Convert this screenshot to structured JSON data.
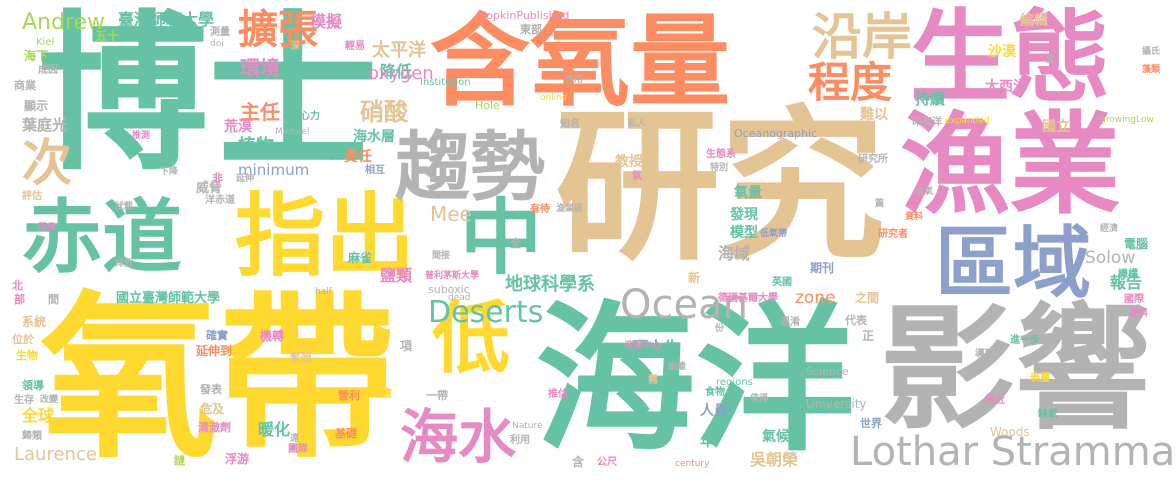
{
  "palette": {
    "teal": "#66c2a5",
    "orange": "#fc8d62",
    "blue": "#8da0cb",
    "pink": "#e78ac3",
    "green": "#a6d854",
    "yellow": "#ffd92f",
    "tan": "#e5c494",
    "gray": "#b3b3b3"
  },
  "words": [
    {
      "text": "博士",
      "color": "teal"
    },
    {
      "text": "研究",
      "color": "tan"
    },
    {
      "text": "氧帶",
      "color": "yellow"
    },
    {
      "text": "海洋",
      "color": "teal"
    },
    {
      "text": "含氧量",
      "color": "orange"
    },
    {
      "text": "影響",
      "color": "gray"
    },
    {
      "text": "漁業",
      "color": "pink"
    },
    {
      "text": "生態",
      "color": "pink"
    },
    {
      "text": "指出",
      "color": "yellow"
    },
    {
      "text": "赤道",
      "color": "teal"
    },
    {
      "text": "趨勢",
      "color": "gray"
    },
    {
      "text": "區域",
      "color": "blue"
    },
    {
      "text": "中",
      "color": "teal"
    },
    {
      "text": "低",
      "color": "yellow"
    },
    {
      "text": "海水",
      "color": "pink"
    },
    {
      "text": "沿岸",
      "color": "tan"
    },
    {
      "text": "程度",
      "color": "orange"
    },
    {
      "text": "Lothar Stramma",
      "color": "gray"
    },
    {
      "text": "Ocean",
      "color": "gray"
    },
    {
      "text": "Deserts",
      "color": "teal"
    },
    {
      "text": "擴張",
      "color": "orange"
    },
    {
      "text": "次",
      "color": "tan"
    },
    {
      "text": "Andrew",
      "color": "green"
    },
    {
      "text": "臺灣師範大學",
      "color": "teal"
    },
    {
      "text": "模擬",
      "color": "pink"
    },
    {
      "text": "HopkinPublished",
      "color": "pink"
    },
    {
      "text": "東部",
      "color": "gray"
    },
    {
      "text": "太平洋",
      "color": "tan"
    },
    {
      "text": "降低",
      "color": "teal"
    },
    {
      "text": "oxygen",
      "color": "pink"
    },
    {
      "text": "環境",
      "color": "pink"
    },
    {
      "text": "主任",
      "color": "orange"
    },
    {
      "text": "植物",
      "color": "teal"
    },
    {
      "text": "硝酸",
      "color": "tan"
    },
    {
      "text": "minimum",
      "color": "blue"
    },
    {
      "text": "海水層",
      "color": "teal"
    },
    {
      "text": "責任",
      "color": "orange"
    },
    {
      "text": "荒漠",
      "color": "pink"
    },
    {
      "text": "地球科學系",
      "color": "teal"
    },
    {
      "text": "鹽類",
      "color": "pink"
    },
    {
      "text": "國立臺灣師範大學",
      "color": "teal"
    },
    {
      "text": "Mee",
      "color": "tan"
    },
    {
      "text": "Laurence",
      "color": "tan"
    },
    {
      "text": "zone",
      "color": "orange"
    },
    {
      "text": "Solow",
      "color": "gray"
    },
    {
      "text": "報告",
      "color": "teal"
    },
    {
      "text": "海域",
      "color": "gray"
    },
    {
      "text": "模型",
      "color": "teal"
    },
    {
      "text": "發現",
      "color": "teal"
    },
    {
      "text": "氧量",
      "color": "teal"
    },
    {
      "text": "持續",
      "color": "teal"
    },
    {
      "text": "大西洋",
      "color": "pink"
    },
    {
      "text": "沙漠",
      "color": "yellow"
    },
    {
      "text": "編輯",
      "color": "tan"
    },
    {
      "text": "國立",
      "color": "tan"
    },
    {
      "text": "難以",
      "color": "tan"
    },
    {
      "text": "碩士生",
      "color": "teal"
    },
    {
      "text": "人員",
      "color": "blue"
    },
    {
      "text": "氣候",
      "color": "teal"
    },
    {
      "text": "吳朝榮",
      "color": "tan"
    },
    {
      "text": "暖化",
      "color": "teal"
    },
    {
      "text": "全球",
      "color": "yellow"
    },
    {
      "text": "葉庭光",
      "color": "gray"
    },
    {
      "text": "五十",
      "color": "green"
    },
    {
      "text": "海下",
      "color": "green"
    },
    {
      "text": "顯示",
      "color": "gray"
    },
    {
      "text": "系統",
      "color": "tan"
    },
    {
      "text": "生物",
      "color": "yellow"
    },
    {
      "text": "威脅",
      "color": "gray"
    },
    {
      "text": "教授",
      "color": "tan"
    },
    {
      "text": "年",
      "color": "teal"
    },
    {
      "text": "Science",
      "color": "gray"
    },
    {
      "text": "University",
      "color": "gray"
    },
    {
      "text": "世界",
      "color": "blue"
    },
    {
      "text": "Woods",
      "color": "tan"
    },
    {
      "text": "期刊",
      "color": "blue"
    },
    {
      "text": "德國基爾大學",
      "color": "pink"
    },
    {
      "text": "英國",
      "color": "teal"
    },
    {
      "text": "之間",
      "color": "tan"
    },
    {
      "text": "延伸到",
      "color": "orange"
    },
    {
      "text": "suboxic",
      "color": "gray"
    },
    {
      "text": "dead",
      "color": "gray"
    },
    {
      "text": "Institution",
      "color": "teal"
    },
    {
      "text": "Hole",
      "color": "green"
    },
    {
      "text": "online",
      "color": "yellow"
    },
    {
      "text": "Oceanographic",
      "color": "blue"
    },
    {
      "text": "growingLow",
      "color": "green"
    },
    {
      "text": "expanded",
      "color": "yellow"
    },
    {
      "text": "Kiel",
      "color": "green"
    },
    {
      "text": "regions",
      "color": "teal"
    },
    {
      "text": "past",
      "color": "teal"
    },
    {
      "text": "half",
      "color": "gray"
    },
    {
      "text": "Nature",
      "color": "gray"
    },
    {
      "text": "century",
      "color": "orange"
    },
    {
      "text": "Michael",
      "color": "gray"
    },
    {
      "text": "doi",
      "color": "gray"
    },
    {
      "text": "麻雀",
      "color": "teal"
    },
    {
      "text": "新",
      "color": "tan"
    },
    {
      "text": "全",
      "color": "gray"
    },
    {
      "text": "項",
      "color": "gray"
    },
    {
      "text": "一帶",
      "color": "gray"
    },
    {
      "text": "基礎",
      "color": "orange"
    },
    {
      "text": "利用",
      "color": "gray"
    },
    {
      "text": "危及",
      "color": "tan"
    },
    {
      "text": "清澈劑",
      "color": "pink"
    },
    {
      "text": "發表",
      "color": "gray"
    },
    {
      "text": "浮游",
      "color": "pink"
    },
    {
      "text": "團隊",
      "color": "pink"
    },
    {
      "text": "繁殖",
      "color": "tan"
    },
    {
      "text": "機轉",
      "color": "pink"
    },
    {
      "text": "確實",
      "color": "blue"
    },
    {
      "text": "運作",
      "color": "teal"
    },
    {
      "text": "相互",
      "color": "blue"
    },
    {
      "text": "心力",
      "color": "teal"
    },
    {
      "text": "輕易",
      "color": "pink"
    },
    {
      "text": "測量",
      "color": "gray"
    },
    {
      "text": "深",
      "color": "tan"
    },
    {
      "text": "成因",
      "color": "gray"
    },
    {
      "text": "商業",
      "color": "gray"
    },
    {
      "text": "推測",
      "color": "pink"
    },
    {
      "text": "評估",
      "color": "tan"
    },
    {
      "text": "狀態",
      "color": "gray"
    },
    {
      "text": "同意",
      "color": "pink"
    },
    {
      "text": "排放",
      "color": "gray"
    },
    {
      "text": "北",
      "color": "pink"
    },
    {
      "text": "部",
      "color": "pink"
    },
    {
      "text": "間",
      "color": "gray"
    },
    {
      "text": "位於",
      "color": "tan"
    },
    {
      "text": "領導",
      "color": "teal"
    },
    {
      "text": "生存",
      "color": "gray"
    },
    {
      "text": "改變",
      "color": "gray"
    },
    {
      "text": "歸類",
      "color": "gray"
    },
    {
      "text": "謎",
      "color": "green"
    },
    {
      "text": "非",
      "color": "pink"
    },
    {
      "text": "延伸",
      "color": "gray"
    },
    {
      "text": "洋赤道",
      "color": "gray"
    },
    {
      "text": "下降",
      "color": "gray"
    },
    {
      "text": "間接",
      "color": "gray"
    },
    {
      "text": "有待",
      "color": "orange"
    },
    {
      "text": "漁業區",
      "color": "gray"
    },
    {
      "text": "普利茅斯大學",
      "color": "pink"
    },
    {
      "text": "氣",
      "color": "pink"
    },
    {
      "text": "特別",
      "color": "gray"
    },
    {
      "text": "生態系",
      "color": "pink"
    },
    {
      "text": "研究所",
      "color": "gray"
    },
    {
      "text": "次氧",
      "color": "gray"
    },
    {
      "text": "篇",
      "color": "gray"
    },
    {
      "text": "資料",
      "color": "orange"
    },
    {
      "text": "研究者",
      "color": "orange"
    },
    {
      "text": "低氧帶",
      "color": "blue"
    },
    {
      "text": "經濟",
      "color": "gray"
    },
    {
      "text": "電腦",
      "color": "teal"
    },
    {
      "text": "機構",
      "color": "teal"
    },
    {
      "text": "國際",
      "color": "pink"
    },
    {
      "text": "肥料",
      "color": "pink"
    },
    {
      "text": "代表",
      "color": "gray"
    },
    {
      "text": "進一步",
      "color": "teal"
    },
    {
      "text": "導致",
      "color": "gray"
    },
    {
      "text": "表層",
      "color": "yellow"
    },
    {
      "text": "接近",
      "color": "pink"
    },
    {
      "text": "缺氧",
      "color": "teal"
    },
    {
      "text": "混淆",
      "color": "gray"
    },
    {
      "text": "值得",
      "color": "gray"
    },
    {
      "text": "食物",
      "color": "teal"
    },
    {
      "text": "距離",
      "color": "gray"
    },
    {
      "text": "需",
      "color": "tan"
    },
    {
      "text": "政策中心",
      "color": "pink"
    },
    {
      "text": "份",
      "color": "gray"
    },
    {
      "text": "正",
      "color": "gray"
    },
    {
      "text": "含",
      "color": "gray"
    },
    {
      "text": "公尺",
      "color": "pink"
    },
    {
      "text": "推估",
      "color": "pink"
    },
    {
      "text": "效應",
      "color": "yellow"
    },
    {
      "text": "營利",
      "color": "orange"
    },
    {
      "text": "作用",
      "color": "gray"
    },
    {
      "text": "知名",
      "color": "gray"
    },
    {
      "text": "私人",
      "color": "gray"
    },
    {
      "text": "印度洋",
      "color": "gray"
    },
    {
      "text": "魔",
      "color": "gray"
    },
    {
      "text": "攝氏",
      "color": "gray"
    },
    {
      "text": "藻類",
      "color": "orange"
    },
    {
      "text": "遠",
      "color": "gray"
    }
  ]
}
